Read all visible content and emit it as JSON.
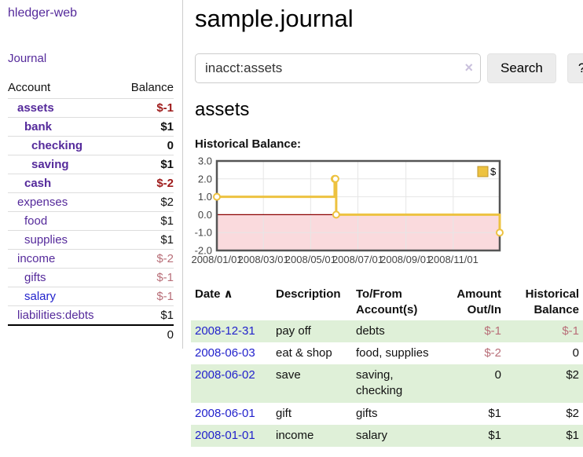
{
  "app": {
    "brand": "hledger-web",
    "nav_journal": "Journal",
    "title": "sample.journal"
  },
  "search": {
    "value": "inacct:assets",
    "clear_icon": "×",
    "button_label": "Search",
    "help_label": "?"
  },
  "sidebar_table": {
    "headers": {
      "account": "Account",
      "balance": "Balance"
    },
    "rows": [
      {
        "account": "assets",
        "balance": "$-1",
        "indent": 1,
        "bold": true,
        "link_color": "purple",
        "negative": true
      },
      {
        "account": "bank",
        "balance": "$1",
        "indent": 2,
        "bold": true,
        "link_color": "purple",
        "negative": false
      },
      {
        "account": "checking",
        "balance": "0",
        "indent": 3,
        "bold": true,
        "link_color": "purple",
        "negative": false
      },
      {
        "account": "saving",
        "balance": "$1",
        "indent": 3,
        "bold": true,
        "link_color": "purple",
        "negative": false
      },
      {
        "account": "cash",
        "balance": "$-2",
        "indent": 2,
        "bold": true,
        "link_color": "purple",
        "negative": true
      },
      {
        "account": "expenses",
        "balance": "$2",
        "indent": 1,
        "bold": false,
        "link_color": "purple",
        "negative": false
      },
      {
        "account": "food",
        "balance": "$1",
        "indent": 2,
        "bold": false,
        "link_color": "purple",
        "negative": false
      },
      {
        "account": "supplies",
        "balance": "$1",
        "indent": 2,
        "bold": false,
        "link_color": "purple",
        "negative": false
      },
      {
        "account": "income",
        "balance": "$-2",
        "indent": 1,
        "bold": false,
        "link_color": "purple",
        "negative": true
      },
      {
        "account": "gifts",
        "balance": "$-1",
        "indent": 2,
        "bold": false,
        "link_color": "purple",
        "negative": true
      },
      {
        "account": "salary",
        "balance": "$-1",
        "indent": 2,
        "bold": false,
        "link_color": "blue",
        "negative": true
      },
      {
        "account": "liabilities:debts",
        "balance": "$1",
        "indent": 1,
        "bold": false,
        "link_color": "purple",
        "negative": false
      }
    ],
    "total": "0"
  },
  "main": {
    "account_heading": "assets",
    "chart_label": "Historical Balance:"
  },
  "chart_data": {
    "type": "line",
    "step": true,
    "title": "Historical Balance",
    "series": [
      {
        "name": "$",
        "color": "#edc240",
        "points": [
          [
            "2008-01-01",
            1
          ],
          [
            "2008-06-01",
            2
          ],
          [
            "2008-06-02",
            2
          ],
          [
            "2008-06-03",
            0
          ],
          [
            "2008-12-31",
            -1
          ]
        ]
      }
    ],
    "x_ticks": [
      "2008/01/01",
      "2008/03/01",
      "2008/05/01",
      "2008/07/01",
      "2008/09/01",
      "2008/11/01"
    ],
    "y_ticks": [
      "3.0",
      "2.0",
      "1.0",
      "0.0",
      "-1.0",
      "-2.0"
    ],
    "ylim": [
      -2,
      3
    ],
    "x_range_days": 365,
    "grid": true,
    "legend": {
      "label": "$",
      "position": "top-right"
    },
    "negative_region_color": "#fadadd",
    "zero_line_color": "#8b0000",
    "grid_color": "#e6e6e6",
    "border_color": "#555555",
    "tick_label_color": "#444444"
  },
  "register": {
    "headers": {
      "date": "Date",
      "sort_icon": "∧",
      "description": "Description",
      "tofrom": "To/From Account(s)",
      "amount": "Amount Out/In",
      "historical": "Historical Balance"
    },
    "rows": [
      {
        "date": "2008-12-31",
        "description": "pay off",
        "accounts": "debts",
        "amount": "$-1",
        "amount_negative": true,
        "balance": "$-1",
        "balance_negative": true
      },
      {
        "date": "2008-06-03",
        "description": "eat & shop",
        "accounts": "food, supplies",
        "amount": "$-2",
        "amount_negative": true,
        "balance": "0",
        "balance_negative": false
      },
      {
        "date": "2008-06-02",
        "description": "save",
        "accounts": "saving, checking",
        "amount": "0",
        "amount_negative": false,
        "balance": "$2",
        "balance_negative": false
      },
      {
        "date": "2008-06-01",
        "description": "gift",
        "accounts": "gifts",
        "amount": "$1",
        "amount_negative": false,
        "balance": "$2",
        "balance_negative": false
      },
      {
        "date": "2008-01-01",
        "description": "income",
        "accounts": "salary",
        "amount": "$1",
        "amount_negative": false,
        "balance": "$1",
        "balance_negative": false
      }
    ]
  },
  "colors": {
    "link_purple": "#552a9b",
    "link_blue": "#2222cc",
    "negative_dark": "#9e1a1a",
    "negative_muted": "#b86e78",
    "row_highlight_green": "#dff0d8"
  }
}
